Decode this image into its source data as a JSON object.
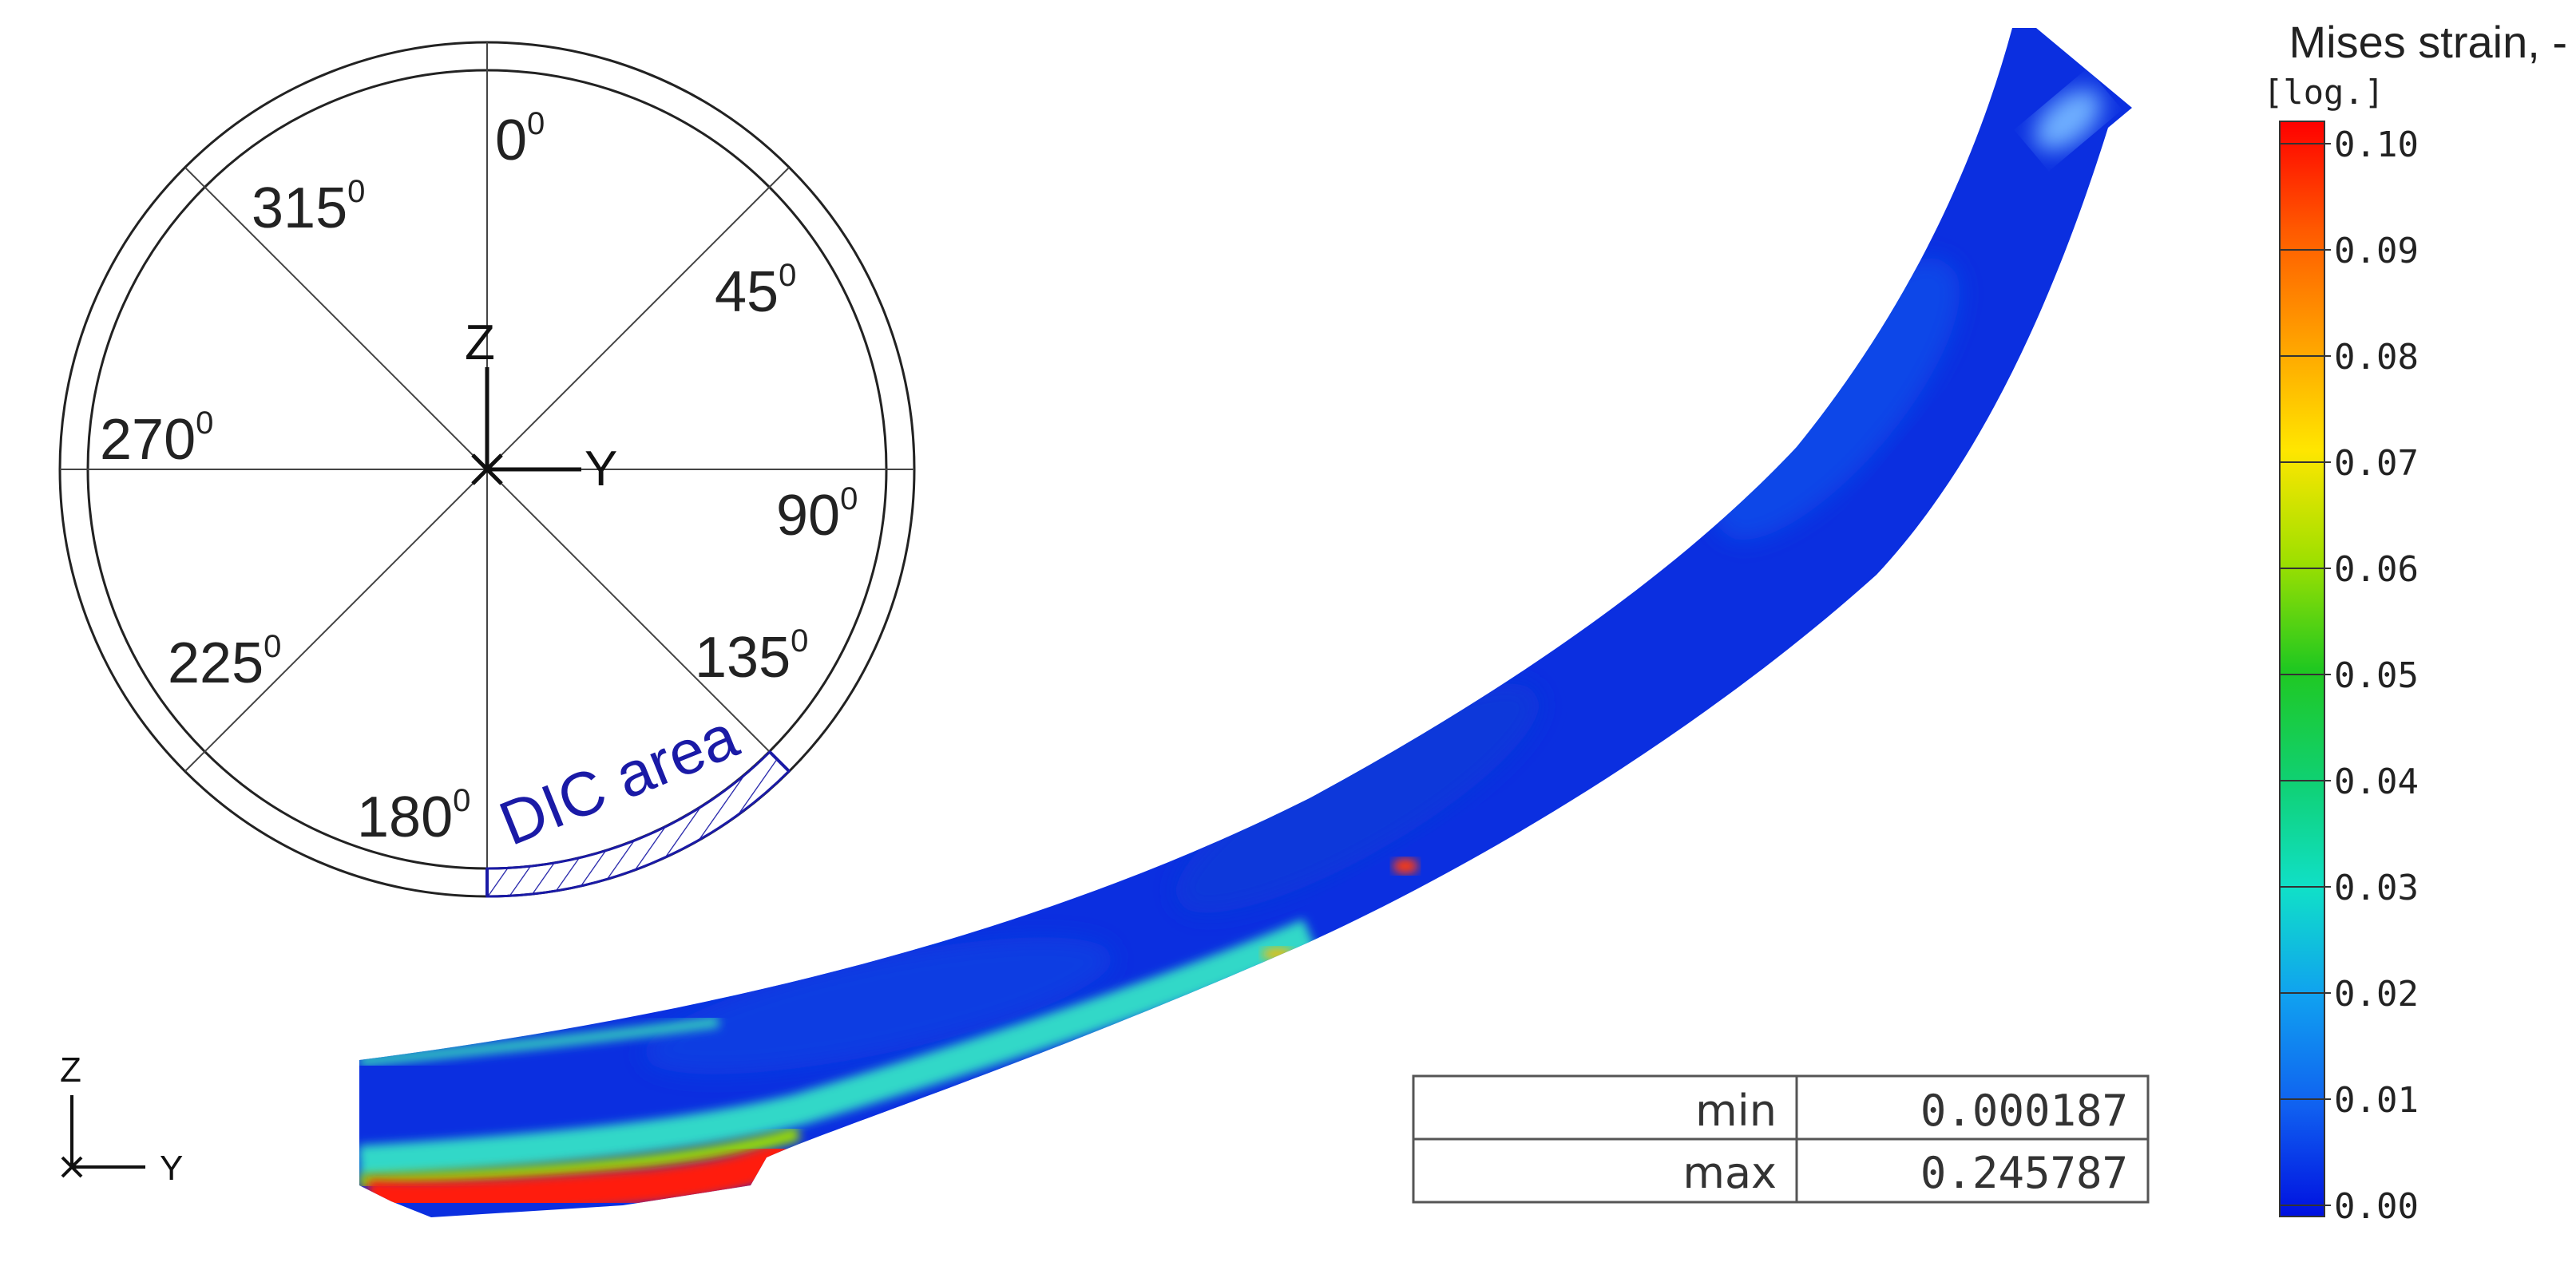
{
  "orientation_diagram": {
    "angle_labels": [
      {
        "deg": "0",
        "sup": "0"
      },
      {
        "deg": "45",
        "sup": "0"
      },
      {
        "deg": "90",
        "sup": "0"
      },
      {
        "deg": "135",
        "sup": "0"
      },
      {
        "deg": "180",
        "sup": "0"
      },
      {
        "deg": "225",
        "sup": "0"
      },
      {
        "deg": "270",
        "sup": "0"
      },
      {
        "deg": "315",
        "sup": "0"
      }
    ],
    "axis_vertical": "Z",
    "axis_horizontal": "Y",
    "region_label": "DIC area",
    "region_color": "#1a1aa6"
  },
  "corner_axes": {
    "vertical": "Z",
    "horizontal": "Y"
  },
  "strain_map": {
    "description_colors": {
      "background": "#0b2fe0",
      "low": "#0a2ad8",
      "mid": "#2fd6d0",
      "high": "#ff1a10"
    }
  },
  "stats_table": {
    "rows": [
      {
        "label": "min",
        "value": "0.000187"
      },
      {
        "label": "max",
        "value": "0.245787"
      }
    ]
  },
  "colorbar": {
    "title": "Mises strain, -",
    "subtitle": "[log.]",
    "ticks": [
      "0.10",
      "0.09",
      "0.08",
      "0.07",
      "0.06",
      "0.05",
      "0.04",
      "0.03",
      "0.02",
      "0.01",
      "0.00"
    ],
    "colors": [
      "#ff0000",
      "#ff5a00",
      "#ffa000",
      "#ffe600",
      "#a0e000",
      "#20c820",
      "#10d070",
      "#10e0c8",
      "#10a0f0",
      "#1060f0",
      "#0010e0"
    ]
  }
}
